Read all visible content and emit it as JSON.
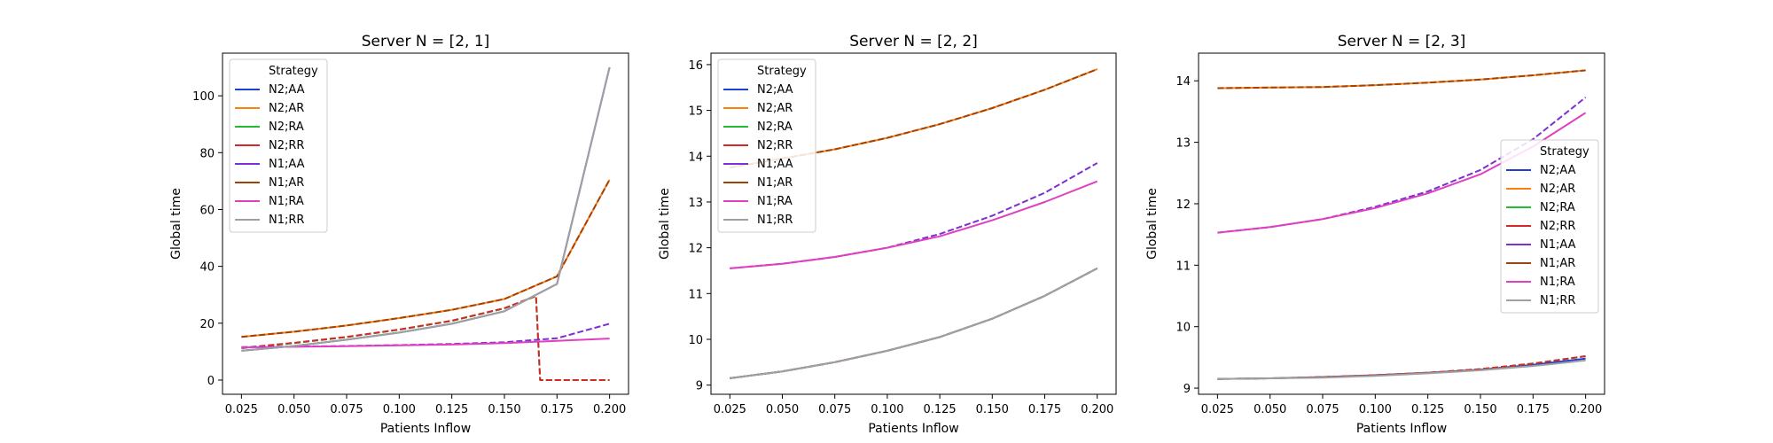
{
  "chart_data": [
    {
      "type": "line",
      "title": "Server N = [2, 1]",
      "xlabel": "Patients Inflow",
      "ylabel": "Global time",
      "xlim": [
        0.016,
        0.209
      ],
      "ylim": [
        -5,
        115
      ],
      "xticks": [
        "0.025",
        "0.050",
        "0.075",
        "0.100",
        "0.125",
        "0.150",
        "0.175",
        "0.200"
      ],
      "yticks": [
        "0",
        "20",
        "40",
        "60",
        "80",
        "100"
      ],
      "ytick_values": [
        0,
        20,
        40,
        60,
        80,
        100
      ],
      "legend": {
        "title": "Strategy",
        "placement": "upper left"
      },
      "series": [
        {
          "name": "N2;AA",
          "color": "#1f3fcf",
          "dash": false,
          "x": [
            0.025,
            0.05,
            0.075,
            0.1,
            0.125,
            0.15,
            0.175,
            0.2
          ],
          "y": [
            10.3,
            12.0,
            14.2,
            16.7,
            19.8,
            24.2,
            33.8,
            110.0
          ]
        },
        {
          "name": "N2;AR",
          "color": "#ff7f0e",
          "dash": false,
          "x": [
            0.025,
            0.05,
            0.075,
            0.1,
            0.125,
            0.15,
            0.175,
            0.2
          ],
          "y": [
            15.2,
            17.0,
            19.2,
            21.8,
            24.7,
            28.5,
            36.5,
            70.5
          ]
        },
        {
          "name": "N2;RA",
          "color": "#22bb33",
          "dash": true,
          "x": [
            0.025,
            0.05,
            0.075,
            0.1,
            0.125,
            0.15,
            0.165,
            0.167,
            0.2
          ],
          "y": [
            11.2,
            13.0,
            15.1,
            17.7,
            20.8,
            25.2,
            29.5,
            0.0,
            0.0
          ]
        },
        {
          "name": "N2;RR",
          "color": "#d62728",
          "dash": true,
          "x": [
            0.025,
            0.05,
            0.075,
            0.1,
            0.125,
            0.15,
            0.165,
            0.167,
            0.2
          ],
          "y": [
            11.3,
            13.1,
            15.2,
            17.8,
            20.9,
            25.3,
            29.6,
            0.0,
            0.0
          ]
        },
        {
          "name": "N1;AA",
          "color": "#7b2fd4",
          "dash": true,
          "x": [
            0.025,
            0.05,
            0.075,
            0.1,
            0.125,
            0.15,
            0.175,
            0.2
          ],
          "y": [
            11.6,
            11.8,
            12.0,
            12.3,
            12.7,
            13.3,
            14.7,
            19.8
          ]
        },
        {
          "name": "N1;AR",
          "color": "#a0430a",
          "dash": true,
          "x": [
            0.025,
            0.05,
            0.075,
            0.1,
            0.125,
            0.15,
            0.175,
            0.2
          ],
          "y": [
            15.2,
            17.0,
            19.2,
            21.8,
            24.7,
            28.5,
            36.5,
            70.5
          ]
        },
        {
          "name": "N1;RA",
          "color": "#e040c0",
          "dash": false,
          "x": [
            0.025,
            0.05,
            0.075,
            0.1,
            0.125,
            0.15,
            0.175,
            0.2
          ],
          "y": [
            11.5,
            11.7,
            11.9,
            12.2,
            12.5,
            13.0,
            13.8,
            14.6
          ]
        },
        {
          "name": "N1;RR",
          "color": "#a0a0a0",
          "dash": false,
          "x": [
            0.025,
            0.05,
            0.075,
            0.1,
            0.125,
            0.15,
            0.175,
            0.2
          ],
          "y": [
            10.3,
            12.0,
            14.2,
            16.7,
            19.8,
            24.2,
            33.8,
            110.0
          ]
        }
      ]
    },
    {
      "type": "line",
      "title": "Server N = [2, 2]",
      "xlabel": "Patients Inflow",
      "ylabel": "Global time",
      "xlim": [
        0.016,
        0.209
      ],
      "ylim": [
        8.8,
        16.25
      ],
      "xticks": [
        "0.025",
        "0.050",
        "0.075",
        "0.100",
        "0.125",
        "0.150",
        "0.175",
        "0.200"
      ],
      "yticks": [
        "9",
        "10",
        "11",
        "12",
        "13",
        "14",
        "15",
        "16"
      ],
      "ytick_values": [
        9,
        10,
        11,
        12,
        13,
        14,
        15,
        16
      ],
      "legend": {
        "title": "Strategy",
        "placement": "upper left"
      },
      "series": [
        {
          "name": "N2;AA",
          "color": "#1f3fcf",
          "dash": false,
          "x": [
            0.025,
            0.05,
            0.075,
            0.1,
            0.125,
            0.15,
            0.175,
            0.2
          ],
          "y": [
            9.15,
            9.3,
            9.5,
            9.75,
            10.05,
            10.45,
            10.95,
            11.55
          ]
        },
        {
          "name": "N2;AR",
          "color": "#ff7f0e",
          "dash": false,
          "x": [
            0.025,
            0.05,
            0.075,
            0.1,
            0.125,
            0.15,
            0.175,
            0.2
          ],
          "y": [
            13.75,
            13.95,
            14.15,
            14.4,
            14.7,
            15.05,
            15.45,
            15.9
          ]
        },
        {
          "name": "N2;RA",
          "color": "#22bb33",
          "dash": true,
          "x": [
            0.025,
            0.05,
            0.075,
            0.1,
            0.125,
            0.15,
            0.175,
            0.2
          ],
          "y": [
            9.15,
            9.3,
            9.5,
            9.75,
            10.05,
            10.45,
            10.95,
            11.55
          ]
        },
        {
          "name": "N2;RR",
          "color": "#d62728",
          "dash": true,
          "x": [
            0.025,
            0.05,
            0.075,
            0.1,
            0.125,
            0.15,
            0.175,
            0.2
          ],
          "y": [
            9.15,
            9.3,
            9.5,
            9.75,
            10.05,
            10.45,
            10.95,
            11.55
          ]
        },
        {
          "name": "N1;AA",
          "color": "#7b2fd4",
          "dash": true,
          "x": [
            0.025,
            0.05,
            0.075,
            0.1,
            0.125,
            0.15,
            0.175,
            0.2
          ],
          "y": [
            11.55,
            11.65,
            11.8,
            12.0,
            12.3,
            12.7,
            13.2,
            13.85
          ]
        },
        {
          "name": "N1;AR",
          "color": "#a0430a",
          "dash": true,
          "x": [
            0.025,
            0.05,
            0.075,
            0.1,
            0.125,
            0.15,
            0.175,
            0.2
          ],
          "y": [
            13.75,
            13.95,
            14.15,
            14.4,
            14.7,
            15.05,
            15.45,
            15.9
          ]
        },
        {
          "name": "N1;RA",
          "color": "#e040c0",
          "dash": false,
          "x": [
            0.025,
            0.05,
            0.075,
            0.1,
            0.125,
            0.15,
            0.175,
            0.2
          ],
          "y": [
            11.55,
            11.65,
            11.8,
            12.0,
            12.25,
            12.6,
            13.0,
            13.45
          ]
        },
        {
          "name": "N1;RR",
          "color": "#a0a0a0",
          "dash": false,
          "x": [
            0.025,
            0.05,
            0.075,
            0.1,
            0.125,
            0.15,
            0.175,
            0.2
          ],
          "y": [
            9.15,
            9.3,
            9.5,
            9.75,
            10.05,
            10.45,
            10.95,
            11.55
          ]
        }
      ]
    },
    {
      "type": "line",
      "title": "Server N = [2, 3]",
      "xlabel": "Patients Inflow",
      "ylabel": "Global time",
      "xlim": [
        0.016,
        0.209
      ],
      "ylim": [
        8.9,
        14.45
      ],
      "xticks": [
        "0.025",
        "0.050",
        "0.075",
        "0.100",
        "0.125",
        "0.150",
        "0.175",
        "0.200"
      ],
      "yticks": [
        "9",
        "10",
        "11",
        "12",
        "13",
        "14"
      ],
      "ytick_values": [
        9,
        10,
        11,
        12,
        13,
        14
      ],
      "legend": {
        "title": "Strategy",
        "placement": "center right"
      },
      "series": [
        {
          "name": "N2;AA",
          "color": "#1f3fcf",
          "dash": false,
          "x": [
            0.025,
            0.05,
            0.075,
            0.1,
            0.125,
            0.15,
            0.175,
            0.2
          ],
          "y": [
            9.15,
            9.16,
            9.18,
            9.21,
            9.25,
            9.3,
            9.38,
            9.48
          ]
        },
        {
          "name": "N2;AR",
          "color": "#ff7f0e",
          "dash": false,
          "x": [
            0.025,
            0.05,
            0.075,
            0.1,
            0.125,
            0.15,
            0.175,
            0.2
          ],
          "y": [
            13.88,
            13.89,
            13.9,
            13.93,
            13.97,
            14.02,
            14.09,
            14.17
          ]
        },
        {
          "name": "N2;RA",
          "color": "#22bb33",
          "dash": true,
          "x": [
            0.025,
            0.05,
            0.075,
            0.1,
            0.125,
            0.15,
            0.175,
            0.2
          ],
          "y": [
            9.15,
            9.16,
            9.18,
            9.21,
            9.25,
            9.31,
            9.4,
            9.52
          ]
        },
        {
          "name": "N2;RR",
          "color": "#d62728",
          "dash": true,
          "x": [
            0.025,
            0.05,
            0.075,
            0.1,
            0.125,
            0.15,
            0.175,
            0.2
          ],
          "y": [
            9.15,
            9.16,
            9.18,
            9.21,
            9.25,
            9.31,
            9.4,
            9.52
          ]
        },
        {
          "name": "N1;AA",
          "color": "#7b2fd4",
          "dash": true,
          "x": [
            0.025,
            0.05,
            0.075,
            0.1,
            0.125,
            0.15,
            0.175,
            0.2
          ],
          "y": [
            11.53,
            11.62,
            11.75,
            11.95,
            12.2,
            12.55,
            13.05,
            13.73
          ]
        },
        {
          "name": "N1;AR",
          "color": "#a0430a",
          "dash": true,
          "x": [
            0.025,
            0.05,
            0.075,
            0.1,
            0.125,
            0.15,
            0.175,
            0.2
          ],
          "y": [
            13.88,
            13.89,
            13.9,
            13.93,
            13.97,
            14.02,
            14.09,
            14.17
          ]
        },
        {
          "name": "N1;RA",
          "color": "#e040c0",
          "dash": false,
          "x": [
            0.025,
            0.05,
            0.075,
            0.1,
            0.125,
            0.15,
            0.175,
            0.2
          ],
          "y": [
            11.53,
            11.62,
            11.75,
            11.93,
            12.17,
            12.48,
            12.93,
            13.48
          ]
        },
        {
          "name": "N1;RR",
          "color": "#a0a0a0",
          "dash": false,
          "x": [
            0.025,
            0.05,
            0.075,
            0.1,
            0.125,
            0.15,
            0.175,
            0.2
          ],
          "y": [
            9.15,
            9.16,
            9.17,
            9.2,
            9.24,
            9.29,
            9.36,
            9.45
          ]
        }
      ]
    }
  ]
}
